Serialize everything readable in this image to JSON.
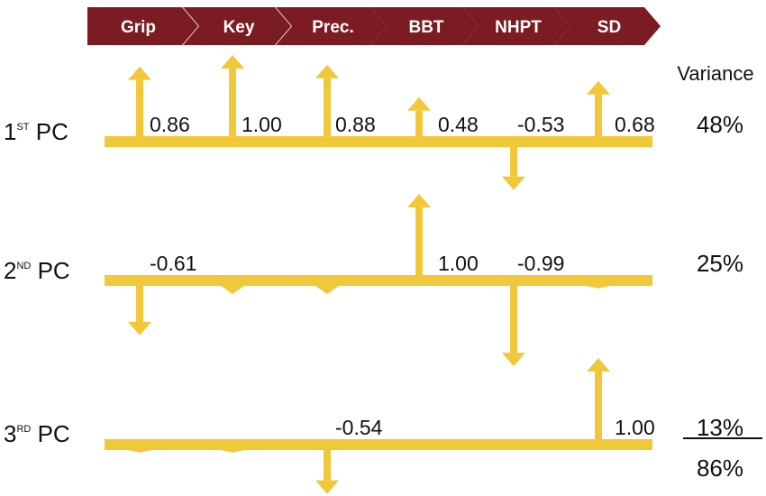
{
  "colors": {
    "chevron": "#7b1b22",
    "chevron_text": "#ffffff",
    "arrow": "#f2c83b",
    "text": "#111111"
  },
  "measures": [
    {
      "label": "Grip"
    },
    {
      "label": "Key"
    },
    {
      "label": "Prec."
    },
    {
      "label": "BBT"
    },
    {
      "label": "NHPT"
    },
    {
      "label": "SD"
    }
  ],
  "variance_header": "Variance",
  "components": [
    {
      "label_main": "1",
      "label_sup": "ST",
      "label_tail": " PC",
      "variance": "48%",
      "loadings": [
        0.86,
        1.0,
        0.88,
        0.48,
        -0.53,
        0.68
      ],
      "value_labels": [
        "0.86",
        "1.00",
        "0.88",
        "0.48",
        "-0.53",
        "0.68"
      ]
    },
    {
      "label_main": "2",
      "label_sup": "ND",
      "label_tail": " PC",
      "variance": "25%",
      "loadings": [
        -0.61,
        -0.1,
        -0.1,
        1.0,
        -0.99,
        -0.03
      ],
      "value_labels": [
        "-0.61",
        "",
        "",
        "1.00",
        "-0.99",
        ""
      ]
    },
    {
      "label_main": "3",
      "label_sup": "RD",
      "label_tail": " PC",
      "variance": "13%",
      "loadings": [
        -0.03,
        -0.03,
        -0.54,
        0.0,
        0.0,
        1.0
      ],
      "value_labels": [
        "",
        "",
        "-0.54",
        "",
        "",
        "1.00"
      ]
    }
  ],
  "total_variance": "86%"
}
